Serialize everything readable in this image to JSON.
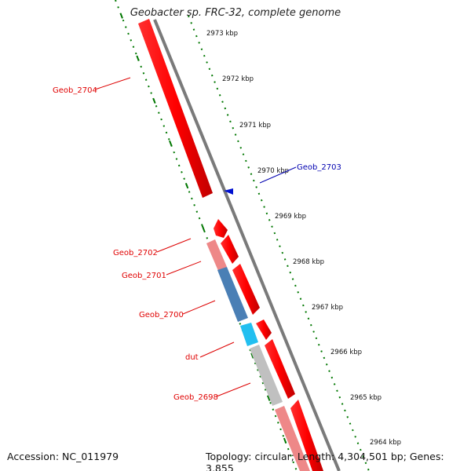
{
  "header": {
    "title": "Geobacter sp. FRC-32, complete genome"
  },
  "footer": {
    "accession": "Accession: NC_011979",
    "topology": "Topology: circular; Length: 4,304,501 bp; Genes: 3,855"
  },
  "ticks": [
    "2973 kbp",
    "2972 kbp",
    "2971 kbp",
    "2970 kbp",
    "2969 kbp",
    "2968 kbp",
    "2967 kbp",
    "2966 kbp",
    "2965 kbp",
    "2964 kbp"
  ],
  "genes": [
    {
      "label": "Geob_2704",
      "color": "#e00000"
    },
    {
      "label": "Geob_2703",
      "color": "#0000b0"
    },
    {
      "label": "Geob_2702",
      "color": "#e00000"
    },
    {
      "label": "Geob_2701",
      "color": "#e00000"
    },
    {
      "label": "Geob_2700",
      "color": "#e00000"
    },
    {
      "label": "dut",
      "color": "#e00000"
    },
    {
      "label": "Geob_2698",
      "color": "#e00000"
    }
  ],
  "colors": {
    "forward": "#ff0000",
    "reverse_light": "#ee8888",
    "steel_blue": "#4a7fb5",
    "cyan": "#22bff0",
    "gray": "#c0c0c0",
    "backbone": "#7a7a7a",
    "tick_ring": "#007700"
  }
}
